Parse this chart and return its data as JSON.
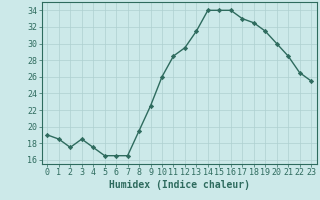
{
  "x": [
    0,
    1,
    2,
    3,
    4,
    5,
    6,
    7,
    8,
    9,
    10,
    11,
    12,
    13,
    14,
    15,
    16,
    17,
    18,
    19,
    20,
    21,
    22,
    23
  ],
  "y": [
    19,
    18.5,
    17.5,
    18.5,
    17.5,
    16.5,
    16.5,
    16.5,
    19.5,
    22.5,
    26,
    28.5,
    29.5,
    31.5,
    34,
    34,
    34,
    33,
    32.5,
    31.5,
    30,
    28.5,
    26.5,
    25.5
  ],
  "line_color": "#2e6b5e",
  "marker": "D",
  "marker_size": 2.2,
  "background_color": "#cce9e9",
  "grid_color": "#aed0d0",
  "xlabel": "Humidex (Indice chaleur)",
  "ylim": [
    15.5,
    35
  ],
  "yticks": [
    16,
    18,
    20,
    22,
    24,
    26,
    28,
    30,
    32,
    34
  ],
  "xlim": [
    -0.5,
    23.5
  ],
  "xticks": [
    0,
    1,
    2,
    3,
    4,
    5,
    6,
    7,
    8,
    9,
    10,
    11,
    12,
    13,
    14,
    15,
    16,
    17,
    18,
    19,
    20,
    21,
    22,
    23
  ],
  "xlabel_fontsize": 7,
  "tick_fontsize": 6,
  "line_width": 1.0
}
